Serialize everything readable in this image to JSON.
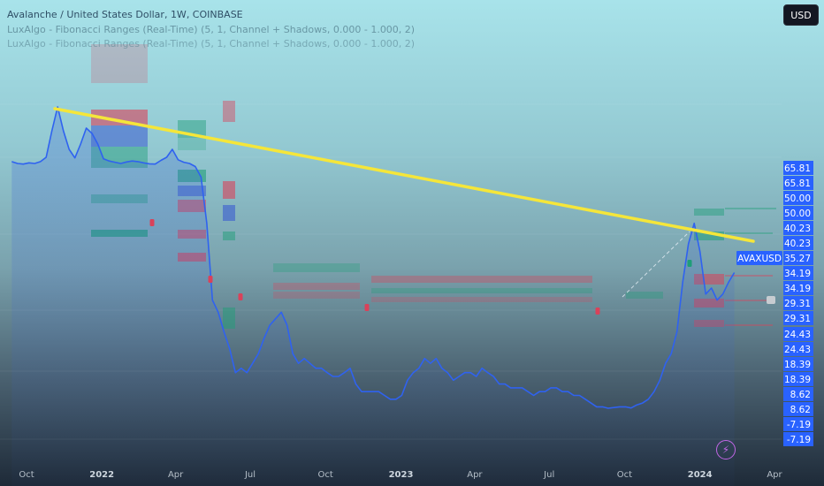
{
  "header": {
    "title": "Avalanche / United States Dollar, 1W, COINBASE",
    "indicator_1": "LuxAlgo - Fibonacci Ranges (Real-Time) (5, 1, Channel + Shadows, 0.000 - 1.000, 2)",
    "indicator_2": "LuxAlgo - Fibonacci Ranges (Real-Time) (5, 1, Channel + Shadows, 0.000 - 1.000, 2)"
  },
  "currency_button": "USD",
  "colors": {
    "price_line": "#2f62f0",
    "trendline": "#f5e63a",
    "fib_red": "#d9425a",
    "fib_green": "#1f9e78",
    "fib_blue": "#3a5bd0",
    "price_label_bg": "#2962ff"
  },
  "chart_data": {
    "type": "line",
    "symbol": "AVAXUSD",
    "x_ticks": [
      {
        "label": "Oct",
        "date": "2021-10-01"
      },
      {
        "label": "2022",
        "date": "2022-01-01",
        "bold": true
      },
      {
        "label": "Apr",
        "date": "2022-04-01"
      },
      {
        "label": "Jul",
        "date": "2022-07-01"
      },
      {
        "label": "Oct",
        "date": "2022-10-01"
      },
      {
        "label": "2023",
        "date": "2023-01-01",
        "bold": true
      },
      {
        "label": "Apr",
        "date": "2023-04-01"
      },
      {
        "label": "Jul",
        "date": "2023-07-01"
      },
      {
        "label": "Oct",
        "date": "2023-10-01"
      },
      {
        "label": "2024",
        "date": "2024-01-01",
        "bold": true
      },
      {
        "label": "Apr",
        "date": "2024-04-01"
      }
    ],
    "price_labels": [
      "65.81",
      "65.81",
      "50.00",
      "50.00",
      "40.23",
      "40.23",
      "34.19",
      "34.19",
      "29.31",
      "29.31",
      "24.43",
      "24.43",
      "18.39",
      "18.39",
      "8.62",
      "8.62",
      "-7.19",
      "-7.19"
    ],
    "current_price": "35.27",
    "series": [
      {
        "values": [
          [
            "2021-09-13",
            86
          ],
          [
            "2021-09-20",
            80
          ],
          [
            "2021-09-27",
            78
          ],
          [
            "2021-10-04",
            82
          ],
          [
            "2021-10-11",
            80
          ],
          [
            "2021-10-18",
            86
          ],
          [
            "2021-10-25",
            100
          ],
          [
            "2021-11-01",
            120
          ],
          [
            "2021-11-08",
            138
          ],
          [
            "2021-11-15",
            120
          ],
          [
            "2021-11-22",
            106
          ],
          [
            "2021-11-29",
            98
          ],
          [
            "2021-12-06",
            110
          ],
          [
            "2021-12-13",
            122
          ],
          [
            "2021-12-20",
            118
          ],
          [
            "2021-12-27",
            110
          ],
          [
            "2022-01-03",
            95
          ],
          [
            "2022-01-10",
            88
          ],
          [
            "2022-01-17",
            84
          ],
          [
            "2022-01-24",
            80
          ],
          [
            "2022-01-31",
            85
          ],
          [
            "2022-02-07",
            88
          ],
          [
            "2022-02-14",
            86
          ],
          [
            "2022-02-21",
            82
          ],
          [
            "2022-02-28",
            79
          ],
          [
            "2022-03-07",
            78
          ],
          [
            "2022-03-14",
            90
          ],
          [
            "2022-03-21",
            100
          ],
          [
            "2022-03-28",
            106
          ],
          [
            "2022-04-04",
            92
          ],
          [
            "2022-04-11",
            84
          ],
          [
            "2022-04-18",
            80
          ],
          [
            "2022-04-25",
            70
          ],
          [
            "2022-05-02",
            62
          ],
          [
            "2022-05-09",
            44
          ],
          [
            "2022-05-16",
            31
          ],
          [
            "2022-05-23",
            29
          ],
          [
            "2022-05-30",
            26
          ],
          [
            "2022-06-06",
            23
          ],
          [
            "2022-06-13",
            18
          ],
          [
            "2022-06-20",
            19
          ],
          [
            "2022-06-27",
            18
          ],
          [
            "2022-07-04",
            20
          ],
          [
            "2022-07-11",
            22
          ],
          [
            "2022-07-18",
            25
          ],
          [
            "2022-07-25",
            27
          ],
          [
            "2022-08-01",
            28
          ],
          [
            "2022-08-08",
            29
          ],
          [
            "2022-08-15",
            27
          ],
          [
            "2022-08-22",
            22
          ],
          [
            "2022-08-29",
            20
          ],
          [
            "2022-09-05",
            21
          ],
          [
            "2022-09-12",
            20
          ],
          [
            "2022-09-19",
            19
          ],
          [
            "2022-09-26",
            19
          ],
          [
            "2022-10-03",
            18
          ],
          [
            "2022-10-10",
            17
          ],
          [
            "2022-10-17",
            17
          ],
          [
            "2022-10-24",
            18
          ],
          [
            "2022-10-31",
            19
          ],
          [
            "2022-11-07",
            15
          ],
          [
            "2022-11-14",
            13
          ],
          [
            "2022-11-21",
            13
          ],
          [
            "2022-11-28",
            13
          ],
          [
            "2022-12-05",
            13
          ],
          [
            "2022-12-12",
            12
          ],
          [
            "2022-12-19",
            11
          ],
          [
            "2022-12-26",
            11
          ],
          [
            "2023-01-02",
            12
          ],
          [
            "2023-01-09",
            16
          ],
          [
            "2023-01-16",
            18
          ],
          [
            "2023-01-23",
            19
          ],
          [
            "2023-01-30",
            21
          ],
          [
            "2023-02-06",
            20
          ],
          [
            "2023-02-13",
            21
          ],
          [
            "2023-02-20",
            19
          ],
          [
            "2023-02-27",
            18
          ],
          [
            "2023-03-06",
            16
          ],
          [
            "2023-03-13",
            17
          ],
          [
            "2023-03-20",
            18
          ],
          [
            "2023-03-27",
            18
          ],
          [
            "2023-04-03",
            17
          ],
          [
            "2023-04-10",
            19
          ],
          [
            "2023-04-17",
            18
          ],
          [
            "2023-04-24",
            17
          ],
          [
            "2023-05-01",
            15
          ],
          [
            "2023-05-08",
            15
          ],
          [
            "2023-05-15",
            14
          ],
          [
            "2023-05-22",
            14
          ],
          [
            "2023-05-29",
            14
          ],
          [
            "2023-06-05",
            13
          ],
          [
            "2023-06-12",
            12
          ],
          [
            "2023-06-19",
            13
          ],
          [
            "2023-06-26",
            13
          ],
          [
            "2023-07-03",
            14
          ],
          [
            "2023-07-10",
            14
          ],
          [
            "2023-07-17",
            13
          ],
          [
            "2023-07-24",
            13
          ],
          [
            "2023-07-31",
            12
          ],
          [
            "2023-08-07",
            12
          ],
          [
            "2023-08-14",
            11
          ],
          [
            "2023-08-21",
            10
          ],
          [
            "2023-08-28",
            9
          ],
          [
            "2023-09-04",
            9
          ],
          [
            "2023-09-11",
            8.6
          ],
          [
            "2023-09-18",
            8.8
          ],
          [
            "2023-09-25",
            9
          ],
          [
            "2023-10-02",
            9
          ],
          [
            "2023-10-09",
            8.7
          ],
          [
            "2023-10-16",
            9.5
          ],
          [
            "2023-10-23",
            10
          ],
          [
            "2023-10-30",
            11
          ],
          [
            "2023-11-06",
            13
          ],
          [
            "2023-11-13",
            16
          ],
          [
            "2023-11-20",
            20
          ],
          [
            "2023-11-27",
            22
          ],
          [
            "2023-12-04",
            26
          ],
          [
            "2023-12-11",
            34
          ],
          [
            "2023-12-18",
            39
          ],
          [
            "2023-12-25",
            44
          ],
          [
            "2024-01-01",
            38
          ],
          [
            "2024-01-08",
            32
          ],
          [
            "2024-01-15",
            33
          ],
          [
            "2024-01-22",
            31
          ],
          [
            "2024-01-29",
            32
          ],
          [
            "2024-02-05",
            34
          ],
          [
            "2024-02-12",
            35.27
          ]
        ]
      }
    ]
  }
}
